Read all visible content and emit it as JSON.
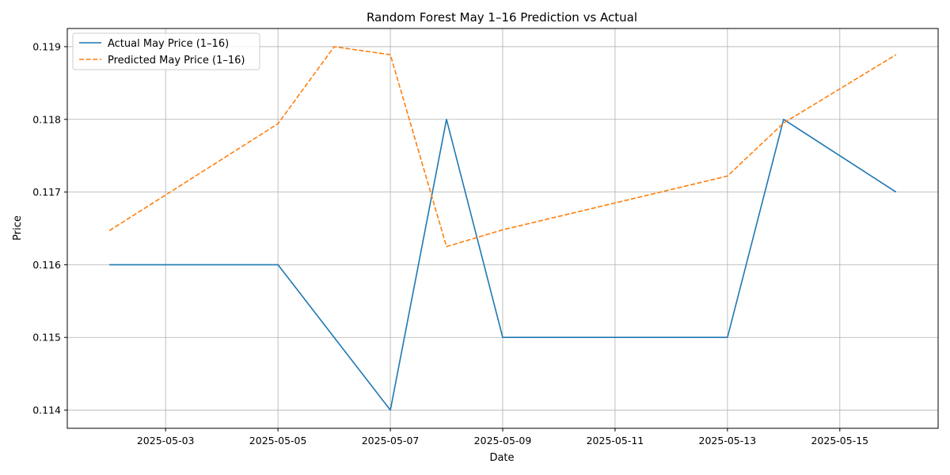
{
  "chart_data": {
    "type": "line",
    "title": "Random Forest May 1–16 Prediction vs Actual",
    "xlabel": "Date",
    "ylabel": "Price",
    "x": [
      "2025-05-02",
      "2025-05-05",
      "2025-05-06",
      "2025-05-07",
      "2025-05-08",
      "2025-05-09",
      "2025-05-12",
      "2025-05-13",
      "2025-05-14",
      "2025-05-15",
      "2025-05-16"
    ],
    "series": [
      {
        "name": "Actual May Price (1–16)",
        "style": "solid",
        "color": "#1f77b4",
        "x": [
          "2025-05-02",
          "2025-05-05",
          "2025-05-06",
          "2025-05-07",
          "2025-05-08",
          "2025-05-09",
          "2025-05-12",
          "2025-05-13",
          "2025-05-14",
          "2025-05-15",
          "2025-05-16"
        ],
        "values": [
          0.116,
          0.116,
          0.115,
          0.114,
          0.118,
          0.115,
          0.115,
          0.115,
          0.118,
          0.1175,
          0.117
        ]
      },
      {
        "name": "Predicted May Price (1–16)",
        "style": "dashed",
        "color": "#ff7f0e",
        "x": [
          "2025-05-02",
          "2025-05-05",
          "2025-05-06",
          "2025-05-07",
          "2025-05-08",
          "2025-05-09",
          "2025-05-13",
          "2025-05-14",
          "2025-05-16"
        ],
        "values": [
          0.11647,
          0.11794,
          0.119,
          0.11889,
          0.11625,
          0.11648,
          0.11722,
          0.11795,
          0.11889
        ]
      }
    ],
    "xticks": [
      "2025-05-03",
      "2025-05-05",
      "2025-05-07",
      "2025-05-09",
      "2025-05-11",
      "2025-05-13",
      "2025-05-15"
    ],
    "yticks": [
      "0.114",
      "0.115",
      "0.116",
      "0.117",
      "0.118",
      "0.119"
    ],
    "xlim": [
      "2025-05-01T06:00",
      "2025-05-16T18:00"
    ],
    "ylim": [
      0.11375,
      0.11925
    ],
    "grid": true,
    "legend": "upper-left"
  }
}
